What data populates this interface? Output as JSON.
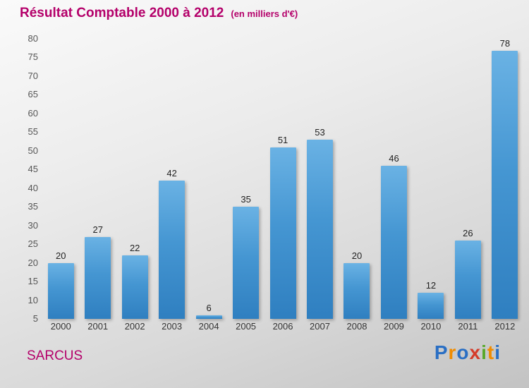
{
  "header": {
    "title": "Résultat Comptable 2000 à 2012",
    "subtitle": "(en milliers d'€)"
  },
  "footer": {
    "company": "SARCUS",
    "brand_letters": [
      {
        "ch": "P",
        "color": "#2a6fc4"
      },
      {
        "ch": "r",
        "color": "#f08c00"
      },
      {
        "ch": "o",
        "color": "#2a6fc4"
      },
      {
        "ch": "x",
        "color": "#d43b2a"
      },
      {
        "ch": "i",
        "color": "#57a829"
      },
      {
        "ch": "t",
        "color": "#f08c00"
      },
      {
        "ch": "i",
        "color": "#2a6fc4"
      }
    ]
  },
  "colors": {
    "title": "#b4006a",
    "bar_top": "#6ab2e4",
    "bar_bottom": "#2f7fc0",
    "background_light": "#fafafa",
    "background_dark": "#c3c3c3"
  },
  "chart_data": {
    "type": "bar",
    "title": "Résultat Comptable 2000 à 2012 (en milliers d'€)",
    "categories": [
      "2000",
      "2001",
      "2002",
      "2003",
      "2004",
      "2005",
      "2006",
      "2007",
      "2008",
      "2009",
      "2010",
      "2011",
      "2012"
    ],
    "values": [
      20,
      27,
      22,
      42,
      6,
      35,
      51,
      53,
      20,
      46,
      12,
      26,
      78
    ],
    "xlabel": "",
    "ylabel": "",
    "ylim": [
      5,
      80
    ],
    "ytick_step": 5,
    "grid": false,
    "legend": false,
    "value_labels": true
  }
}
